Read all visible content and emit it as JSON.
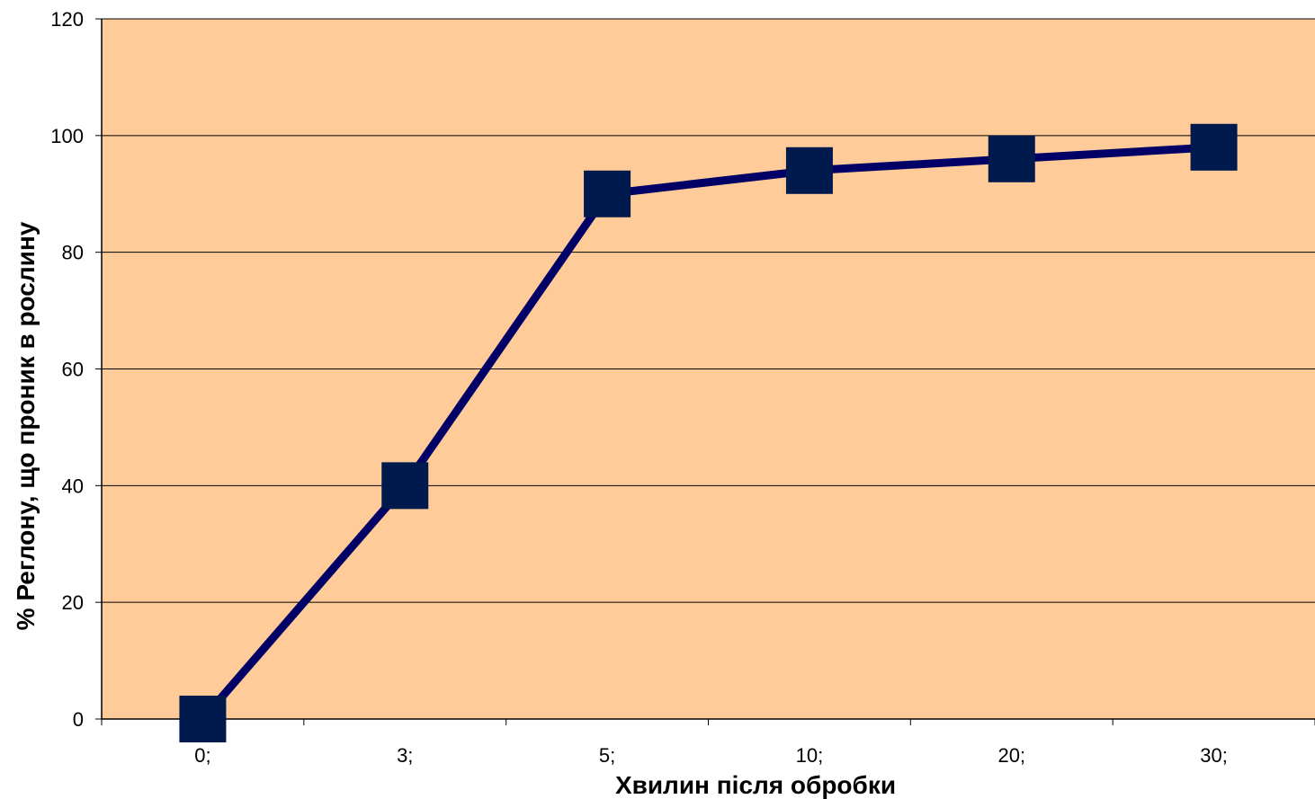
{
  "chart_data": {
    "type": "line",
    "categories": [
      "0;",
      "3;",
      "5;",
      "10;",
      "20;",
      "30;"
    ],
    "series": [
      {
        "values": [
          0,
          40,
          90,
          94,
          96,
          98
        ],
        "color": "#000066",
        "marker": "square",
        "marker_color": "#001a4d"
      }
    ],
    "xlabel": "Хвилин після обробки",
    "ylabel": "% Реглону, що проник в рослину",
    "ylim": [
      0,
      120
    ],
    "yticks": [
      0,
      20,
      40,
      60,
      80,
      100,
      120
    ],
    "grid": true,
    "plot_background": "#ffcc99"
  }
}
